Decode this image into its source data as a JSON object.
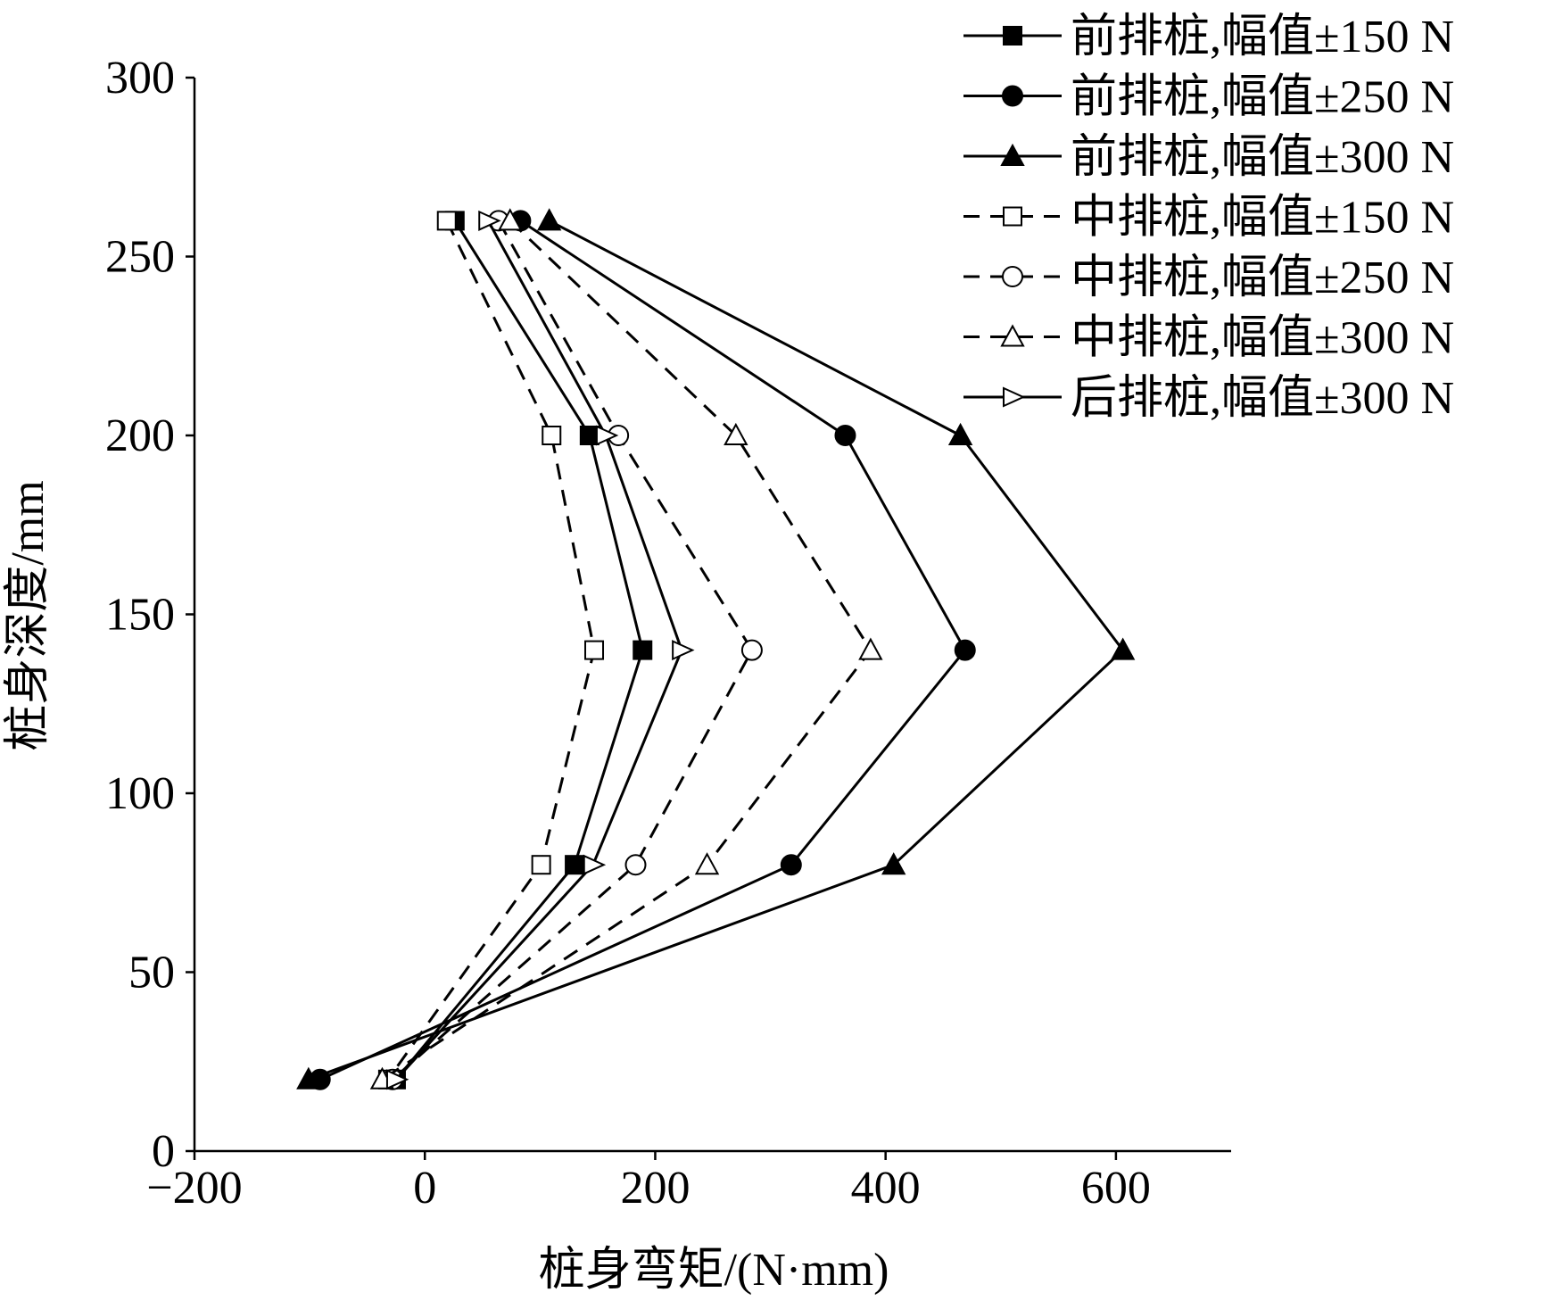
{
  "chart_data": {
    "type": "line",
    "x_label": "桩身弯矩/(N·mm)",
    "y_label": "桩身深度/mm",
    "y": [
      260,
      200,
      140,
      80,
      20
    ],
    "series": [
      {
        "name": "前排桩,幅值±150 N",
        "color": "#000000",
        "marker": "square",
        "filled": true,
        "dashed": false,
        "x": [
          26,
          143,
          189,
          130,
          -25
        ]
      },
      {
        "name": "前排桩,幅值±250 N",
        "color": "#000000",
        "marker": "circle",
        "filled": true,
        "dashed": false,
        "x": [
          83,
          365,
          469,
          318,
          -91
        ]
      },
      {
        "name": "前排桩,幅值±300 N",
        "color": "#000000",
        "marker": "triangle",
        "filled": true,
        "dashed": false,
        "x": [
          108,
          465,
          606,
          407,
          -101
        ]
      },
      {
        "name": "中排桩,幅值±150 N",
        "color": "#000000",
        "marker": "square",
        "filled": false,
        "dashed": true,
        "x": [
          19,
          110,
          147,
          101,
          -32
        ]
      },
      {
        "name": "中排桩,幅值±250 N",
        "color": "#000000",
        "marker": "circle",
        "filled": false,
        "dashed": true,
        "x": [
          64,
          168,
          284,
          183,
          -28
        ]
      },
      {
        "name": "中排桩,幅值±300 N",
        "color": "#000000",
        "marker": "triangle",
        "filled": false,
        "dashed": true,
        "x": [
          74,
          270,
          387,
          245,
          -37
        ]
      },
      {
        "name": "后排桩,幅值±300 N",
        "color": "#000000",
        "marker": "right-triangle",
        "filled": false,
        "dashed": false,
        "x": [
          55,
          157,
          223,
          146,
          -25
        ]
      }
    ],
    "xlim": [
      -200,
      700
    ],
    "xticks": [
      {
        "value": -200,
        "label": "−200"
      },
      0,
      200,
      400,
      600
    ],
    "ylim": [
      0,
      300
    ],
    "yticks": [
      0,
      50,
      100,
      150,
      200,
      250,
      300
    ],
    "legend": "top-right"
  }
}
